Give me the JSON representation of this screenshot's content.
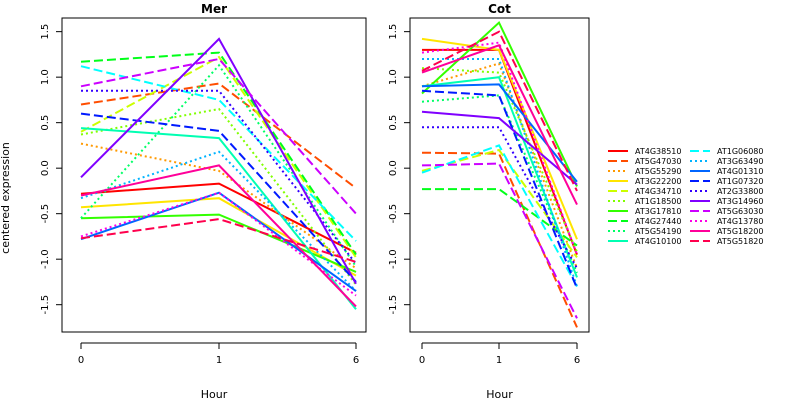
{
  "figure": {
    "ylabel": "centered expression",
    "xlabel": "Hour"
  },
  "chart_data": [
    {
      "type": "line",
      "title": "Mer",
      "xlabel": "Hour",
      "ylabel": "centered expression",
      "x": [
        "0",
        "1",
        "6"
      ],
      "ylim": [
        -1.8,
        1.65
      ],
      "yticks": [
        -1.5,
        -1.0,
        -0.5,
        0.0,
        0.5,
        1.0,
        1.5
      ],
      "series": [
        {
          "name": "AT4G38510",
          "values": [
            -0.28,
            -0.17,
            -0.93
          ]
        },
        {
          "name": "AT5G47030",
          "values": [
            0.7,
            0.93,
            -0.22
          ]
        },
        {
          "name": "AT5G55290",
          "values": [
            0.27,
            -0.03,
            -1.1
          ]
        },
        {
          "name": "AT3G22200",
          "values": [
            -0.43,
            -0.33,
            -1.18
          ]
        },
        {
          "name": "AT4G34710",
          "values": [
            0.4,
            1.22,
            -0.98
          ]
        },
        {
          "name": "AT1G18500",
          "values": [
            0.37,
            0.65,
            -1.28
          ]
        },
        {
          "name": "AT3G17810",
          "values": [
            -0.55,
            -0.51,
            -1.14
          ]
        },
        {
          "name": "AT4G27440",
          "values": [
            1.17,
            1.27,
            -0.95
          ]
        },
        {
          "name": "AT5G54190",
          "values": [
            -0.55,
            1.13,
            -1.08
          ]
        },
        {
          "name": "AT4G10100",
          "values": [
            0.44,
            0.33,
            -1.55
          ]
        },
        {
          "name": "AT1G06080",
          "values": [
            1.12,
            0.75,
            -0.8
          ]
        },
        {
          "name": "AT3G63490",
          "values": [
            -0.33,
            0.18,
            -1.35
          ]
        },
        {
          "name": "AT4G01310",
          "values": [
            -0.78,
            -0.27,
            -1.35
          ]
        },
        {
          "name": "AT1G07320",
          "values": [
            0.6,
            0.41,
            -1.25
          ]
        },
        {
          "name": "AT2G33800",
          "values": [
            0.85,
            0.85,
            -1.05
          ]
        },
        {
          "name": "AT3G14960",
          "values": [
            -0.1,
            1.42,
            -1.27
          ]
        },
        {
          "name": "AT5G63030",
          "values": [
            0.9,
            1.2,
            -0.5
          ]
        },
        {
          "name": "AT4G13780",
          "values": [
            -0.75,
            -0.27,
            -1.4
          ]
        },
        {
          "name": "AT5G18200",
          "values": [
            -0.3,
            0.03,
            -1.52
          ]
        },
        {
          "name": "AT5G51820",
          "values": [
            -0.77,
            -0.56,
            -1.03
          ]
        }
      ]
    },
    {
      "type": "line",
      "title": "Cot",
      "xlabel": "Hour",
      "ylabel": "",
      "x": [
        "0",
        "1",
        "6"
      ],
      "ylim": [
        -1.8,
        1.65
      ],
      "yticks": [
        -1.5,
        -1.0,
        -0.5,
        0.0,
        0.5,
        1.0,
        1.5
      ],
      "series": [
        {
          "name": "AT4G38510",
          "values": [
            1.3,
            1.3,
            -0.95
          ]
        },
        {
          "name": "AT5G47030",
          "values": [
            0.17,
            0.16,
            -1.75
          ]
        },
        {
          "name": "AT5G55290",
          "values": [
            0.9,
            1.15,
            -1.1
          ]
        },
        {
          "name": "AT3G22200",
          "values": [
            1.42,
            1.3,
            -0.78
          ]
        },
        {
          "name": "AT4G34710",
          "values": [
            -0.03,
            0.2,
            -0.98
          ]
        },
        {
          "name": "AT1G18500",
          "values": [
            1.1,
            1.05,
            -0.92
          ]
        },
        {
          "name": "AT3G17810",
          "values": [
            0.82,
            1.6,
            -0.2
          ]
        },
        {
          "name": "AT4G27440",
          "values": [
            -0.23,
            -0.23,
            -0.85
          ]
        },
        {
          "name": "AT5G54190",
          "values": [
            0.73,
            0.8,
            -1.15
          ]
        },
        {
          "name": "AT4G10100",
          "values": [
            0.9,
            1.0,
            -1.2
          ]
        },
        {
          "name": "AT1G06080",
          "values": [
            -0.05,
            0.25,
            -1.3
          ]
        },
        {
          "name": "AT3G63490",
          "values": [
            1.2,
            1.2,
            -1.3
          ]
        },
        {
          "name": "AT4G01310",
          "values": [
            0.9,
            0.92,
            -0.15
          ]
        },
        {
          "name": "AT1G07320",
          "values": [
            0.85,
            0.8,
            -1.32
          ]
        },
        {
          "name": "AT2G33800",
          "values": [
            0.45,
            0.45,
            -1.1
          ]
        },
        {
          "name": "AT3G14960",
          "values": [
            0.62,
            0.55,
            -0.18
          ]
        },
        {
          "name": "AT5G63030",
          "values": [
            0.03,
            0.05,
            -1.65
          ]
        },
        {
          "name": "AT4G13780",
          "values": [
            1.27,
            1.38,
            -0.95
          ]
        },
        {
          "name": "AT5G18200",
          "values": [
            1.05,
            1.35,
            -0.4
          ]
        },
        {
          "name": "AT5G51820",
          "values": [
            1.07,
            1.5,
            -0.25
          ]
        }
      ]
    }
  ],
  "legend": {
    "placement": "right",
    "entries": [
      {
        "label": "AT4G38510",
        "color": "#FF0000",
        "dash": "solid"
      },
      {
        "label": "AT5G47030",
        "color": "#FF4D00",
        "dash": "long"
      },
      {
        "label": "AT5G55290",
        "color": "#FF9900",
        "dash": "dotted"
      },
      {
        "label": "AT3G22200",
        "color": "#FFE500",
        "dash": "solid"
      },
      {
        "label": "AT4G34710",
        "color": "#CCFF00",
        "dash": "long"
      },
      {
        "label": "AT1G18500",
        "color": "#80FF00",
        "dash": "dotted"
      },
      {
        "label": "AT3G17810",
        "color": "#33FF00",
        "dash": "solid"
      },
      {
        "label": "AT4G27440",
        "color": "#00FF19",
        "dash": "long"
      },
      {
        "label": "AT5G54190",
        "color": "#00FF66",
        "dash": "dotted"
      },
      {
        "label": "AT4G10100",
        "color": "#00FFB2",
        "dash": "solid"
      },
      {
        "label": "AT1G06080",
        "color": "#00FFFF",
        "dash": "long"
      },
      {
        "label": "AT3G63490",
        "color": "#00B3FF",
        "dash": "dotted"
      },
      {
        "label": "AT4G01310",
        "color": "#0066FF",
        "dash": "solid"
      },
      {
        "label": "AT1G07320",
        "color": "#001AFF",
        "dash": "long"
      },
      {
        "label": "AT2G33800",
        "color": "#3300FF",
        "dash": "dotted"
      },
      {
        "label": "AT3G14960",
        "color": "#8000FF",
        "dash": "solid"
      },
      {
        "label": "AT5G63030",
        "color": "#CC00FF",
        "dash": "long"
      },
      {
        "label": "AT4G13780",
        "color": "#FF00E6",
        "dash": "dotted"
      },
      {
        "label": "AT5G18200",
        "color": "#FF0099",
        "dash": "solid"
      },
      {
        "label": "AT5G51820",
        "color": "#FF004D",
        "dash": "long"
      }
    ]
  }
}
